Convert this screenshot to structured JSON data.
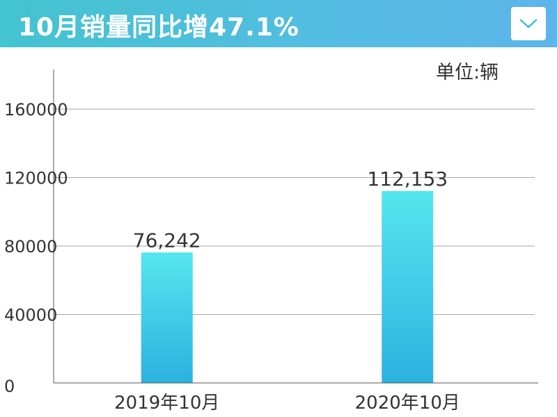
{
  "header": {
    "title": "10月销量同比增47.1%",
    "dropdown_icon": "chevron-down-icon",
    "gradient_colors": [
      "#44c3d0",
      "#5db5ea"
    ]
  },
  "unit_label": "单位:辆",
  "chart_data": {
    "type": "bar",
    "title": "10月销量同比增47.1%",
    "categories": [
      "2019年10月",
      "2020年10月"
    ],
    "values": [
      76242,
      112153
    ],
    "value_labels": [
      "76,242",
      "112,153"
    ],
    "yticks": [
      "0",
      "40000",
      "80000",
      "120000",
      "160000"
    ],
    "ytick_values": [
      0,
      40000,
      80000,
      120000,
      160000
    ],
    "xlabel": "",
    "ylabel": "",
    "ylim": [
      0,
      180000
    ],
    "grid": true,
    "bar_color_top": "#56e6ee",
    "bar_color_bottom": "#2bb2e0"
  }
}
